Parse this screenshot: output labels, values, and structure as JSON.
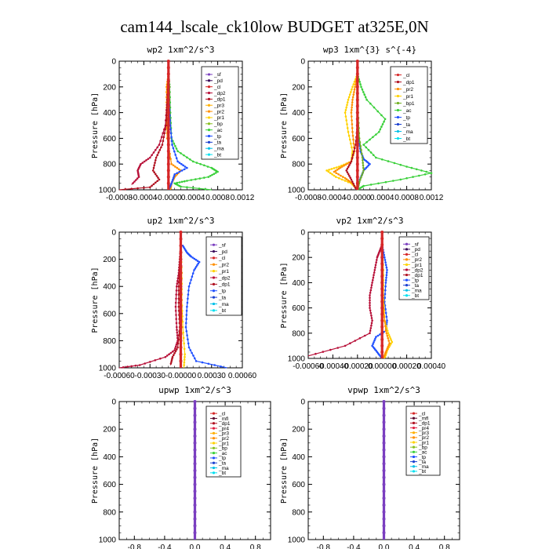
{
  "figure_title": "cam144_lscale_ck10low  BUDGET at325E,0N",
  "colors": {
    "sf": "#7b3fc0",
    "pd": "#3a0a5a",
    "cl": "#d62728",
    "dp2": "#b8123a",
    "dp1": "#b01020",
    "pr3": "#ffb000",
    "pr2": "#ff9000",
    "pr1": "#ffd200",
    "bp": "#88c020",
    "bp1": "#70b020",
    "ac": "#3ad03a",
    "tp": "#2050ff",
    "ta": "#1a40d0",
    "ma": "#00c0e8",
    "bt": "#00e0f0",
    "mfl": "#5a0a30",
    "pr4": "#e02040"
  },
  "chart_data": [
    {
      "type": "line",
      "title": "wp2   1xm^2/s^3",
      "ylabel": "Pressure [hPa]",
      "xlim": [
        -0.0008,
        0.0012
      ],
      "ylim": [
        0,
        1000
      ],
      "xticks": [
        "-0.0008",
        "-0.0004",
        "-0.0000",
        "0.0004",
        "0.0008",
        "0.0012"
      ],
      "yticks": [
        "0",
        "200",
        "400",
        "600",
        "800",
        "1000"
      ],
      "legend": [
        "_sf",
        "_pd",
        "_cl",
        "_dp2",
        "_dp1",
        "_pr3",
        "_pr2",
        "_pr1",
        "_bp",
        "_ac",
        "_tp",
        "_ta",
        "_ma",
        "_bt"
      ],
      "series": [
        {
          "name": "_sf",
          "color": "sf",
          "x": [
            0,
            0,
            0,
            0,
            0,
            0,
            0
          ],
          "y": [
            0,
            100,
            300,
            500,
            700,
            900,
            1000
          ]
        },
        {
          "name": "_pd",
          "color": "pd",
          "x": [
            0,
            0,
            0,
            0,
            0,
            0
          ],
          "y": [
            0,
            200,
            400,
            600,
            800,
            1000
          ]
        },
        {
          "name": "_pr2",
          "color": "pr2",
          "x": [
            0,
            -3e-05,
            -3e-05,
            -2e-05,
            5e-05,
            0.0002,
            0.0001,
            5e-05,
            3e-05
          ],
          "y": [
            100,
            200,
            400,
            600,
            800,
            850,
            900,
            950,
            1000
          ]
        },
        {
          "name": "_ac",
          "color": "ac",
          "x": [
            0,
            2e-05,
            3e-05,
            5e-05,
            0.00015,
            0.0004,
            0.0007,
            0.0008,
            0.00065,
            0.0003,
            0.0001,
            0.0002,
            0.0007
          ],
          "y": [
            100,
            200,
            400,
            600,
            700,
            780,
            830,
            860,
            900,
            930,
            950,
            975,
            1000
          ]
        },
        {
          "name": "_tp",
          "color": "tp",
          "x": [
            0,
            1e-05,
            3e-05,
            6e-05,
            0.00015,
            0.0003,
            0.0001,
            5e-05,
            0
          ],
          "y": [
            100,
            300,
            500,
            650,
            780,
            830,
            880,
            950,
            1000
          ]
        },
        {
          "name": "_dp2",
          "color": "dp2",
          "x": [
            0,
            -2e-05,
            -5e-05,
            -0.00015,
            -0.0003,
            -0.00045,
            -0.0005,
            -0.00048,
            -0.0006
          ],
          "y": [
            100,
            300,
            500,
            650,
            750,
            800,
            850,
            900,
            960
          ]
        },
        {
          "name": "_dp1",
          "color": "dp1",
          "x": [
            0,
            -2e-05,
            -4e-05,
            -0.0001,
            -0.0002,
            -0.00025,
            -0.00015,
            -0.0003,
            -0.0008
          ],
          "y": [
            100,
            300,
            500,
            650,
            750,
            850,
            920,
            980,
            1000
          ]
        },
        {
          "name": "_cl",
          "color": "cl",
          "x": [
            0,
            0,
            0,
            0,
            0,
            0
          ],
          "y": [
            0,
            200,
            400,
            600,
            800,
            1000
          ]
        }
      ]
    },
    {
      "type": "line",
      "title": "wp3   1xm^{3} s^{-4}",
      "ylabel": "Pressure [hPa]",
      "xlim": [
        -0.0008,
        0.0012
      ],
      "ylim": [
        0,
        1000
      ],
      "xticks": [
        "-0.0008",
        "-0.0004",
        "-0.0000",
        "0.0004",
        "0.0008",
        "0.0012"
      ],
      "yticks": [
        "0",
        "200",
        "400",
        "600",
        "800",
        "1000"
      ],
      "legend": [
        "_cl",
        "_dp1",
        "_pr2",
        "_pr1",
        "_bp1",
        "_ac",
        "_tp",
        "_ta",
        "_ma",
        "_bt"
      ],
      "series": [
        {
          "name": "_pr1",
          "color": "pr1",
          "x": [
            0,
            -8e-05,
            -0.00015,
            -0.0002,
            -0.00015,
            -8e-05,
            -0.0001,
            -0.0003,
            -0.0005,
            -0.00035,
            -0.0001,
            0
          ],
          "y": [
            100,
            200,
            300,
            400,
            550,
            700,
            780,
            820,
            850,
            900,
            950,
            1000
          ]
        },
        {
          "name": "_pr2",
          "color": "pr2",
          "x": [
            0,
            -4e-05,
            -8e-05,
            -0.0001,
            -8e-05,
            -5e-05,
            -0.0001,
            -0.00025,
            -0.00038,
            -0.0002,
            -8e-05,
            0
          ],
          "y": [
            100,
            200,
            300,
            400,
            550,
            700,
            780,
            820,
            860,
            910,
            950,
            1000
          ]
        },
        {
          "name": "_ac",
          "color": "ac",
          "x": [
            0,
            6e-05,
            0.00015,
            0.00045,
            0.00035,
            0.0001,
            0.0003,
            0.0008,
            0.0012,
            0.0007,
            0.0001,
            0
          ],
          "y": [
            100,
            200,
            300,
            450,
            550,
            650,
            750,
            820,
            870,
            920,
            970,
            1000
          ]
        },
        {
          "name": "_tp",
          "color": "tp",
          "x": [
            0,
            0,
            2e-05,
            5e-05,
            0.0001,
            0.0002,
            0.0001,
            4e-05,
            0
          ],
          "y": [
            100,
            400,
            600,
            700,
            760,
            800,
            850,
            920,
            1000
          ]
        },
        {
          "name": "_bp1",
          "color": "bp1",
          "x": [
            0,
            1e-05,
            3e-05,
            8e-05,
            0.0001,
            3e-05,
            0
          ],
          "y": [
            100,
            400,
            600,
            750,
            850,
            940,
            1000
          ]
        },
        {
          "name": "_dp1",
          "color": "dp1",
          "x": [
            0,
            0,
            -3e-05,
            -0.0001,
            -0.00018,
            -0.0001,
            -2e-05
          ],
          "y": [
            100,
            500,
            650,
            780,
            850,
            920,
            1000
          ]
        },
        {
          "name": "_cl",
          "color": "cl",
          "x": [
            0,
            0,
            0,
            0,
            0,
            0
          ],
          "y": [
            0,
            200,
            400,
            600,
            800,
            1000
          ]
        }
      ]
    },
    {
      "type": "line",
      "title": "up2   1xm^2/s^3",
      "ylabel": "Pressure [hPa]",
      "xlim": [
        -0.0006,
        0.0006
      ],
      "ylim": [
        0,
        1000
      ],
      "xticks": [
        "-0.00060",
        "-0.00030",
        "-0.00000",
        "0.00030",
        "0.00060"
      ],
      "yticks": [
        "0",
        "200",
        "400",
        "600",
        "800",
        "1000"
      ],
      "legend": [
        "_sf",
        "_pd",
        "_cl",
        "_pr2",
        "_pr1",
        "_dp2",
        "_dp1",
        "_tp",
        "_ta",
        "_ma",
        "_bt"
      ],
      "series": [
        {
          "name": "_tp",
          "color": "tp",
          "x": [
            2e-05,
            6e-05,
            0.0001,
            0.00018,
            0.00013,
            8e-05,
            6e-05,
            5e-05,
            8e-05,
            0.00015,
            0.00045
          ],
          "y": [
            100,
            150,
            180,
            220,
            280,
            400,
            550,
            700,
            850,
            950,
            1000
          ]
        },
        {
          "name": "_dp2",
          "color": "dp2",
          "x": [
            0,
            -1e-05,
            -2e-05,
            -4e-05,
            -5e-05,
            -4e-05,
            -3e-05,
            -6e-05,
            -0.00015,
            -0.0004,
            -0.0006
          ],
          "y": [
            100,
            200,
            300,
            400,
            550,
            700,
            800,
            870,
            920,
            980,
            1000
          ]
        },
        {
          "name": "_dp1",
          "color": "dp1",
          "x": [
            0,
            -1e-05,
            -2e-05,
            -2e-05,
            -1e-05,
            -3e-05,
            -8e-05,
            -0.0001
          ],
          "y": [
            100,
            250,
            400,
            550,
            700,
            850,
            920,
            980
          ]
        },
        {
          "name": "_pr1",
          "color": "pr1",
          "x": [
            0,
            1e-05,
            1e-05,
            2e-05,
            4e-05,
            3e-05
          ],
          "y": [
            100,
            300,
            500,
            700,
            900,
            1000
          ]
        },
        {
          "name": "_cl",
          "color": "cl",
          "x": [
            0,
            0,
            0,
            0,
            0,
            0
          ],
          "y": [
            0,
            200,
            400,
            600,
            800,
            1000
          ]
        }
      ]
    },
    {
      "type": "line",
      "title": "vp2   1xm^2/s^3",
      "ylabel": "Pressure [hPa]",
      "xlim": [
        -0.0006,
        0.0004
      ],
      "ylim": [
        0,
        1000
      ],
      "xticks": [
        "-0.00060",
        "-0.00040",
        "-0.00020",
        "0.00000",
        "0.00020",
        "0.00040"
      ],
      "yticks": [
        "0",
        "200",
        "400",
        "600",
        "800",
        "1000"
      ],
      "legend": [
        "_sf",
        "_pd",
        "_cl",
        "_pr2",
        "_pr1",
        "_dp2",
        "_dp1",
        "_tp",
        "_ta",
        "_ma",
        "_bt"
      ],
      "series": [
        {
          "name": "_dp2",
          "color": "dp2",
          "x": [
            0,
            -2e-05,
            -4e-05,
            -6e-05,
            -8e-05,
            -0.0001,
            -0.0001,
            -8e-05,
            -0.0001,
            -0.0003,
            -0.0006
          ],
          "y": [
            100,
            150,
            200,
            300,
            400,
            500,
            600,
            700,
            800,
            900,
            980
          ]
        },
        {
          "name": "_tp",
          "color": "tp",
          "x": [
            0,
            2e-05,
            4e-05,
            3e-05,
            2e-05,
            4e-05,
            3e-05,
            -5e-05,
            -8e-05,
            -4e-05,
            0
          ],
          "y": [
            100,
            200,
            300,
            400,
            550,
            700,
            780,
            830,
            900,
            950,
            1000
          ]
        },
        {
          "name": "_pr1",
          "color": "pr1",
          "x": [
            0,
            1e-05,
            1e-05,
            2e-05,
            5e-05,
            8e-05,
            4e-05,
            2e-05
          ],
          "y": [
            100,
            300,
            500,
            700,
            800,
            870,
            940,
            1000
          ]
        },
        {
          "name": "_pr2",
          "color": "pr2",
          "x": [
            0,
            0,
            1e-05,
            3e-05,
            6e-05,
            3e-05,
            1e-05
          ],
          "y": [
            100,
            400,
            600,
            780,
            880,
            950,
            1000
          ]
        },
        {
          "name": "_cl",
          "color": "cl",
          "x": [
            0,
            0,
            0,
            0,
            0,
            0
          ],
          "y": [
            0,
            200,
            400,
            600,
            800,
            1000
          ]
        }
      ]
    },
    {
      "type": "line",
      "title": "upwp   1xm^2/s^3",
      "ylabel": "Pressure [hPa]",
      "xlim": [
        -1.0,
        1.0
      ],
      "ylim": [
        0,
        1000
      ],
      "xticks": [
        "-0.8",
        "-0.4",
        "0.0",
        "0.4",
        "0.8"
      ],
      "yticks": [
        "0",
        "200",
        "400",
        "600",
        "800",
        "1000"
      ],
      "legend": [
        "_cl",
        "_mfl",
        "_dp1",
        "_pr4",
        "_pr3",
        "_pr2",
        "_pr1",
        "_bp",
        "_ac",
        "_tp",
        "_ta",
        "_ma",
        "_bt"
      ],
      "series": [
        {
          "name": "_dp1",
          "color": "dp1",
          "x": [
            0,
            0,
            0,
            0,
            0,
            0
          ],
          "y": [
            0,
            200,
            400,
            600,
            800,
            1000
          ]
        },
        {
          "name": "_cl",
          "color": "sf",
          "x": [
            0,
            0,
            0,
            0,
            0,
            0
          ],
          "y": [
            0,
            200,
            400,
            600,
            800,
            1000
          ]
        }
      ]
    },
    {
      "type": "line",
      "title": "vpwp   1xm^2/s^3",
      "ylabel": "Pressure [hPa]",
      "xlim": [
        -1.0,
        1.0
      ],
      "ylim": [
        0,
        1000
      ],
      "xticks": [
        "-0.8",
        "-0.4",
        "0.0",
        "0.4",
        "0.8"
      ],
      "yticks": [
        "0",
        "200",
        "400",
        "600",
        "800",
        "1000"
      ],
      "legend": [
        "_cl",
        "_mfl",
        "_dp1",
        "_pr4",
        "_pr3",
        "_pr2",
        "_pr1",
        "_bp",
        "_ac",
        "_tp",
        "_ta",
        "_ma",
        "_bt"
      ],
      "series": [
        {
          "name": "_dp1",
          "color": "dp1",
          "x": [
            0,
            0,
            0,
            0,
            0,
            0
          ],
          "y": [
            0,
            200,
            400,
            600,
            800,
            1000
          ]
        },
        {
          "name": "_cl",
          "color": "sf",
          "x": [
            0,
            0,
            0,
            0,
            0,
            0
          ],
          "y": [
            0,
            200,
            400,
            600,
            800,
            1000
          ]
        }
      ]
    }
  ]
}
